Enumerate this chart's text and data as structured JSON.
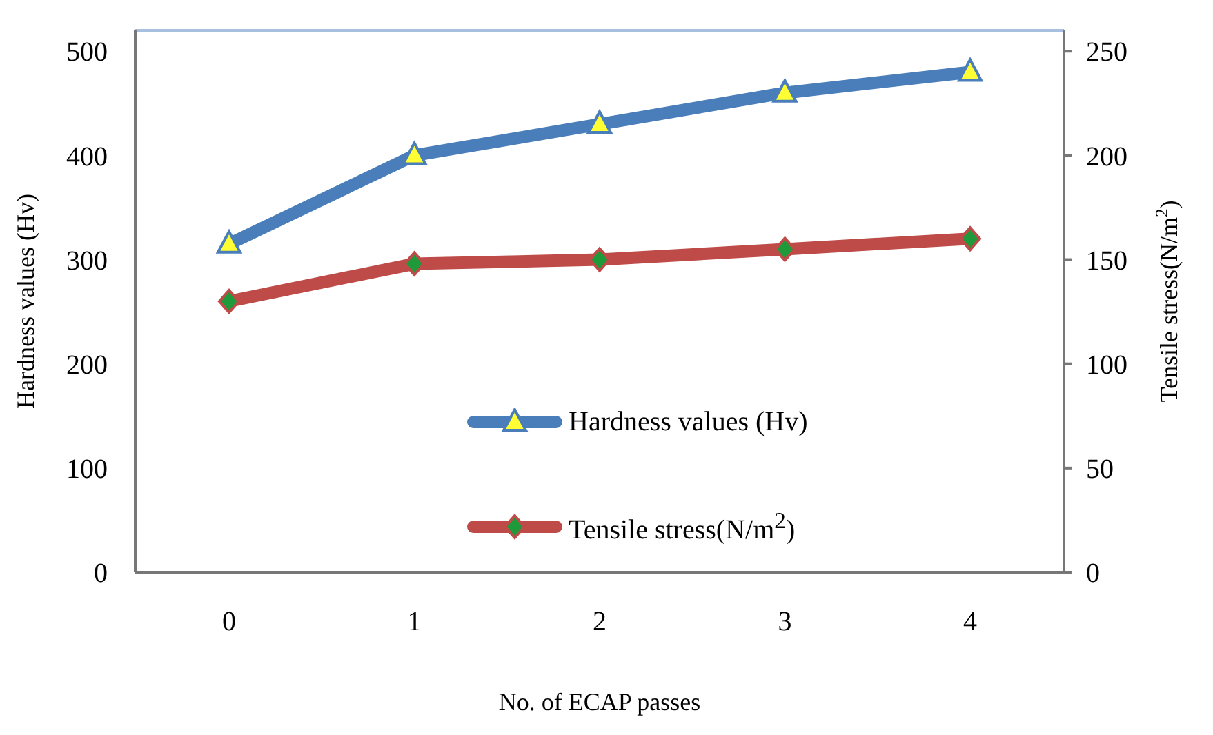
{
  "chart_data": {
    "type": "line",
    "xlabel": "No. of ECAP passes",
    "ylabel": "Hardness values (Hv)",
    "y2label": "Tensile stress(N/m$^{2}$)",
    "categories": [
      "0",
      "1",
      "2",
      "3",
      "4"
    ],
    "series": [
      {
        "name": "Hardness values (Hv)",
        "color": "#4a7ebb",
        "values": [
          315,
          400,
          430,
          460,
          480
        ],
        "marker": "triangle"
      },
      {
        "name": "Tensile stress(N/m$^{2}$)",
        "color": "#be4b48",
        "values": [
          130,
          148,
          150,
          155,
          160
        ],
        "axis": "y2",
        "marker": "diamond"
      }
    ],
    "ylim": [
      0,
      520
    ],
    "yticks": [
      0,
      100,
      200,
      300,
      400,
      500
    ],
    "y2lim": [
      0,
      260
    ],
    "y2ticks": [
      0,
      50,
      100,
      150,
      200,
      250
    ],
    "grid": false,
    "legend": "center"
  }
}
